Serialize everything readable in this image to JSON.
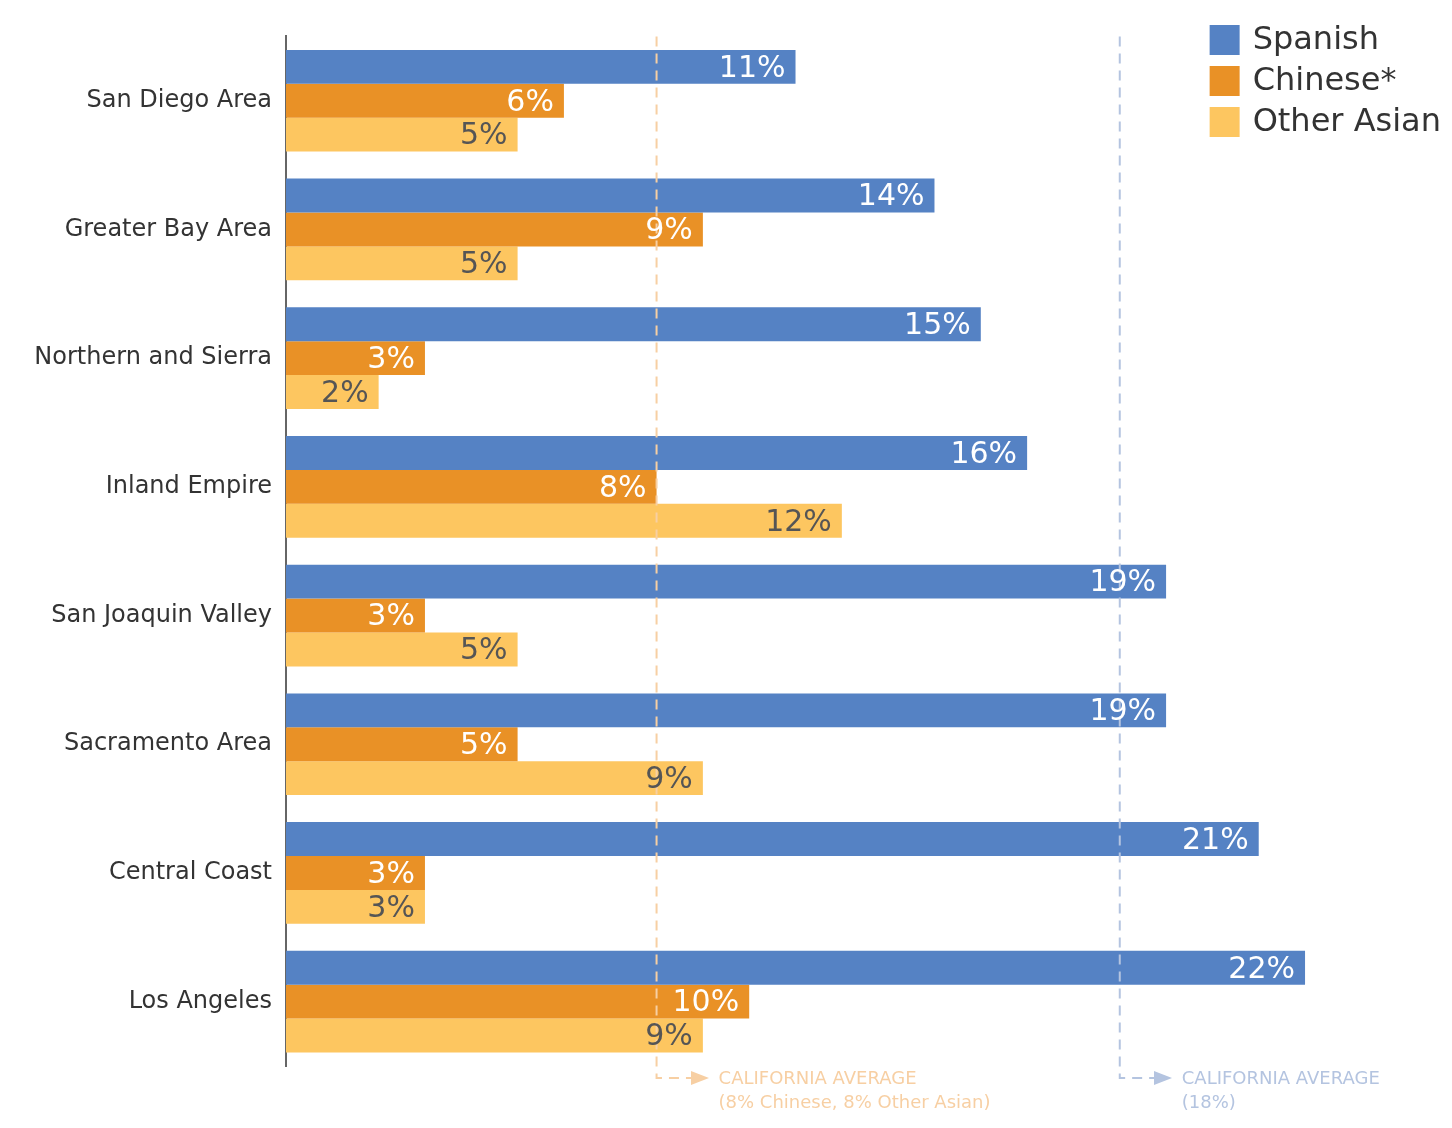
{
  "chart_data": {
    "type": "bar",
    "orientation": "horizontal",
    "categories": [
      "San Diego Area",
      "Greater Bay Area",
      "Northern and Sierra",
      "Inland Empire",
      "San Joaquin Valley",
      "Sacramento Area",
      "Central Coast",
      "Los Angeles"
    ],
    "series": [
      {
        "name": "Spanish",
        "color": "#5582c4",
        "values": [
          11,
          14,
          15,
          16,
          19,
          19,
          21,
          22
        ],
        "value_labels": [
          "11%",
          "14%",
          "15%",
          "16%",
          "19%",
          "19%",
          "21%",
          "22%"
        ]
      },
      {
        "name": "Chinese*",
        "color": "#e99126",
        "values": [
          6,
          9,
          3,
          8,
          3,
          5,
          3,
          10
        ],
        "value_labels": [
          "6%",
          "9%",
          "3%",
          "8%",
          "3%",
          "5%",
          "3%",
          "10%"
        ]
      },
      {
        "name": "Other Asian",
        "color": "#fdc660",
        "values": [
          5,
          5,
          2,
          12,
          5,
          9,
          3,
          9
        ],
        "value_labels": [
          "5%",
          "5%",
          "2%",
          "12%",
          "5%",
          "9%",
          "3%",
          "9%"
        ]
      }
    ],
    "ref_lines": [
      {
        "axis": "x",
        "value": 8,
        "label": "CALIFORNIA AVERAGE\n(8% Chinese, 8% Other Asian)",
        "color": "#f7cfa3",
        "line_style": "dashed"
      },
      {
        "axis": "x",
        "value": 18,
        "label": "CALIFORNIA AVERAGE\n(18%)",
        "color": "#b4c4e0",
        "line_style": "dashed"
      }
    ],
    "tick_labels": "y",
    "grid": false,
    "legend": "top right"
  }
}
